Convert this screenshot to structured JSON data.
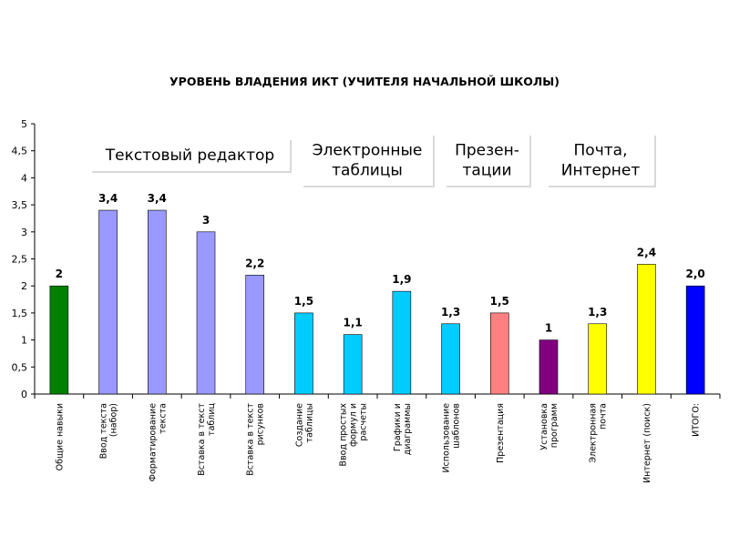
{
  "chart_data": {
    "type": "bar",
    "title": "УРОВЕНЬ ВЛАДЕНИЯ  ИКТ (УЧИТЕЛЯ НАЧАЛЬНОЙ ШКОЛЫ)",
    "xlabel": "",
    "ylabel": "",
    "ylim": [
      0,
      5
    ],
    "y_ticks": [
      "0",
      "0,5",
      "1",
      "1,5",
      "2",
      "2,5",
      "3",
      "3,5",
      "4",
      "4,5",
      "5"
    ],
    "grid": false,
    "legend": "none",
    "categories": [
      [
        "Общие навыки"
      ],
      [
        "Ввод текста",
        "(набор)"
      ],
      [
        "Форматирование",
        "текста"
      ],
      [
        "Вставка в текст",
        "таблиц"
      ],
      [
        "Вставка в текст",
        "рисунков"
      ],
      [
        "Создание",
        "таблицы"
      ],
      [
        "Ввод простых",
        "формул и",
        "расчеты"
      ],
      [
        "Графики и",
        "диаграммы"
      ],
      [
        "Использование",
        "шаблонов"
      ],
      [
        "Презентация"
      ],
      [
        "Установка",
        "программ"
      ],
      [
        "Электронная",
        "почта"
      ],
      [
        "Интернет (поиск)"
      ],
      [
        "ИТОГО:"
      ]
    ],
    "values": [
      2,
      3.4,
      3.4,
      3,
      2.2,
      1.5,
      1.1,
      1.9,
      1.3,
      1.5,
      1,
      1.3,
      2.4,
      2.0
    ],
    "value_labels": [
      "2",
      "3,4",
      "3,4",
      "3",
      "2,2",
      "1,5",
      "1,1",
      "1,9",
      "1,3",
      "1,5",
      "1",
      "1,3",
      "2,4",
      "2,0"
    ],
    "colors": [
      "#008000",
      "#9999ff",
      "#9999ff",
      "#9999ff",
      "#9999ff",
      "#00ccff",
      "#00ccff",
      "#00ccff",
      "#00ccff",
      "#ff8080",
      "#800080",
      "#ffff00",
      "#ffff00",
      "#0000ff"
    ],
    "annotations": [
      {
        "lines": [
          "Текстовый редактор"
        ],
        "from": 0,
        "to": 4
      },
      {
        "lines": [
          "Электронные",
          "таблицы"
        ],
        "from": 5,
        "to": 8
      },
      {
        "lines": [
          "Презен-",
          "тации"
        ],
        "from": 9,
        "to": 9
      },
      {
        "lines": [
          "Почта,",
          "Интернет"
        ],
        "from": 10,
        "to": 12
      }
    ]
  }
}
